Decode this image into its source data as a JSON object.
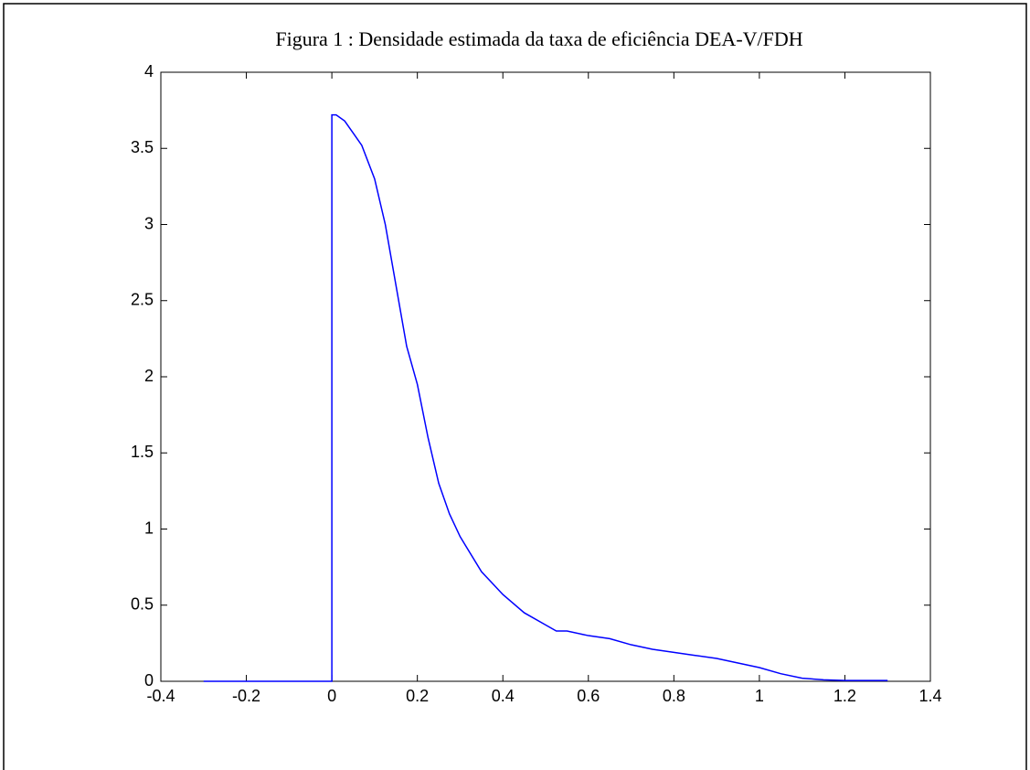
{
  "chart_data": {
    "type": "line",
    "title": "Figura 1 : Densidade estimada da taxa de eficiência DEA-V/FDH",
    "x": [
      -0.3,
      -0.2,
      -0.1,
      0,
      0,
      0.01,
      0.03,
      0.05,
      0.07,
      0.1,
      0.125,
      0.15,
      0.175,
      0.2,
      0.225,
      0.25,
      0.275,
      0.3,
      0.35,
      0.4,
      0.45,
      0.5,
      0.525,
      0.55,
      0.6,
      0.65,
      0.7,
      0.75,
      0.8,
      0.85,
      0.9,
      0.95,
      1.0,
      1.05,
      1.1,
      1.15,
      1.2,
      1.3
    ],
    "series": [
      {
        "color": "#0000ff",
        "values": [
          0,
          0,
          0,
          0,
          3.72,
          3.72,
          3.68,
          3.6,
          3.52,
          3.3,
          3.0,
          2.6,
          2.2,
          1.95,
          1.6,
          1.3,
          1.1,
          0.95,
          0.72,
          0.57,
          0.45,
          0.37,
          0.33,
          0.33,
          0.3,
          0.28,
          0.24,
          0.21,
          0.19,
          0.17,
          0.15,
          0.12,
          0.09,
          0.05,
          0.02,
          0.01,
          0.005,
          0.005
        ]
      }
    ],
    "xlim": [
      -0.4,
      1.4
    ],
    "xticks": [
      -0.4,
      -0.2,
      0,
      0.2,
      0.4,
      0.6,
      0.8,
      1,
      1.2,
      1.4
    ],
    "ylim": [
      0,
      4
    ],
    "yticks": [
      0,
      0.5,
      1,
      1.5,
      2,
      2.5,
      3,
      3.5,
      4
    ],
    "grid": false
  }
}
